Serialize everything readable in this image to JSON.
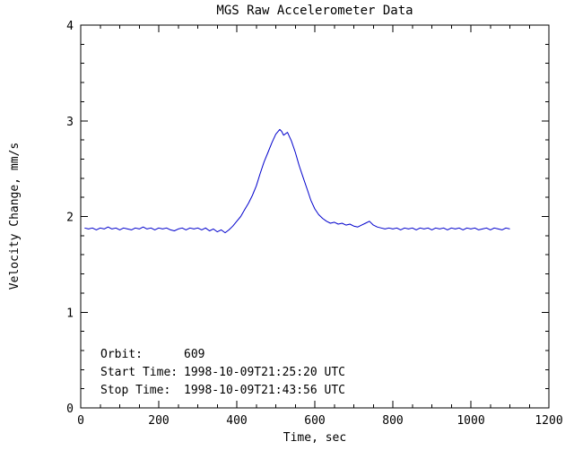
{
  "chart_data": {
    "type": "line",
    "title": "MGS Raw Accelerometer Data",
    "xlabel": "Time, sec",
    "ylabel": "Velocity Change, mm/s",
    "xlim": [
      0,
      1200
    ],
    "ylim": [
      0,
      4
    ],
    "xticks": [
      0,
      200,
      400,
      600,
      800,
      1000,
      1200
    ],
    "yticks": [
      0,
      1,
      2,
      3,
      4
    ],
    "x_minor": 50,
    "y_minor": 0.2,
    "grid": false,
    "legend_position": "none",
    "line_color": "#0000cc",
    "series_name": "velocity-change",
    "annotations": {
      "orbit_label": "Orbit:",
      "orbit_value": "609",
      "start_label": "Start Time:",
      "start_value": "1998-10-09T21:25:20 UTC",
      "stop_label": "Stop Time:",
      "stop_value": "1998-10-09T21:43:56 UTC"
    },
    "points": [
      [
        10,
        1.88
      ],
      [
        20,
        1.87
      ],
      [
        30,
        1.88
      ],
      [
        40,
        1.86
      ],
      [
        50,
        1.88
      ],
      [
        60,
        1.87
      ],
      [
        70,
        1.89
      ],
      [
        80,
        1.87
      ],
      [
        90,
        1.88
      ],
      [
        100,
        1.86
      ],
      [
        110,
        1.88
      ],
      [
        120,
        1.87
      ],
      [
        130,
        1.86
      ],
      [
        140,
        1.88
      ],
      [
        150,
        1.87
      ],
      [
        160,
        1.89
      ],
      [
        170,
        1.87
      ],
      [
        180,
        1.88
      ],
      [
        190,
        1.86
      ],
      [
        200,
        1.88
      ],
      [
        210,
        1.87
      ],
      [
        220,
        1.88
      ],
      [
        230,
        1.86
      ],
      [
        240,
        1.85
      ],
      [
        250,
        1.87
      ],
      [
        260,
        1.88
      ],
      [
        270,
        1.86
      ],
      [
        280,
        1.88
      ],
      [
        290,
        1.87
      ],
      [
        300,
        1.88
      ],
      [
        310,
        1.86
      ],
      [
        320,
        1.88
      ],
      [
        330,
        1.85
      ],
      [
        340,
        1.87
      ],
      [
        350,
        1.84
      ],
      [
        360,
        1.86
      ],
      [
        370,
        1.83
      ],
      [
        380,
        1.86
      ],
      [
        390,
        1.9
      ],
      [
        400,
        1.95
      ],
      [
        410,
        2.0
      ],
      [
        420,
        2.07
      ],
      [
        430,
        2.14
      ],
      [
        440,
        2.22
      ],
      [
        450,
        2.32
      ],
      [
        460,
        2.45
      ],
      [
        470,
        2.57
      ],
      [
        480,
        2.67
      ],
      [
        490,
        2.77
      ],
      [
        500,
        2.86
      ],
      [
        510,
        2.91
      ],
      [
        515,
        2.89
      ],
      [
        520,
        2.85
      ],
      [
        530,
        2.88
      ],
      [
        540,
        2.79
      ],
      [
        550,
        2.67
      ],
      [
        560,
        2.53
      ],
      [
        570,
        2.41
      ],
      [
        580,
        2.29
      ],
      [
        590,
        2.17
      ],
      [
        600,
        2.08
      ],
      [
        610,
        2.02
      ],
      [
        620,
        1.98
      ],
      [
        630,
        1.95
      ],
      [
        640,
        1.93
      ],
      [
        650,
        1.94
      ],
      [
        660,
        1.92
      ],
      [
        670,
        1.93
      ],
      [
        680,
        1.91
      ],
      [
        690,
        1.92
      ],
      [
        700,
        1.9
      ],
      [
        710,
        1.89
      ],
      [
        720,
        1.91
      ],
      [
        730,
        1.93
      ],
      [
        740,
        1.95
      ],
      [
        750,
        1.91
      ],
      [
        760,
        1.89
      ],
      [
        770,
        1.88
      ],
      [
        780,
        1.87
      ],
      [
        790,
        1.88
      ],
      [
        800,
        1.87
      ],
      [
        810,
        1.88
      ],
      [
        820,
        1.86
      ],
      [
        830,
        1.88
      ],
      [
        840,
        1.87
      ],
      [
        850,
        1.88
      ],
      [
        860,
        1.86
      ],
      [
        870,
        1.88
      ],
      [
        880,
        1.87
      ],
      [
        890,
        1.88
      ],
      [
        900,
        1.86
      ],
      [
        910,
        1.88
      ],
      [
        920,
        1.87
      ],
      [
        930,
        1.88
      ],
      [
        940,
        1.86
      ],
      [
        950,
        1.88
      ],
      [
        960,
        1.87
      ],
      [
        970,
        1.88
      ],
      [
        980,
        1.86
      ],
      [
        990,
        1.88
      ],
      [
        1000,
        1.87
      ],
      [
        1010,
        1.88
      ],
      [
        1020,
        1.86
      ],
      [
        1030,
        1.87
      ],
      [
        1040,
        1.88
      ],
      [
        1050,
        1.86
      ],
      [
        1060,
        1.88
      ],
      [
        1070,
        1.87
      ],
      [
        1080,
        1.86
      ],
      [
        1090,
        1.88
      ],
      [
        1100,
        1.87
      ]
    ]
  }
}
